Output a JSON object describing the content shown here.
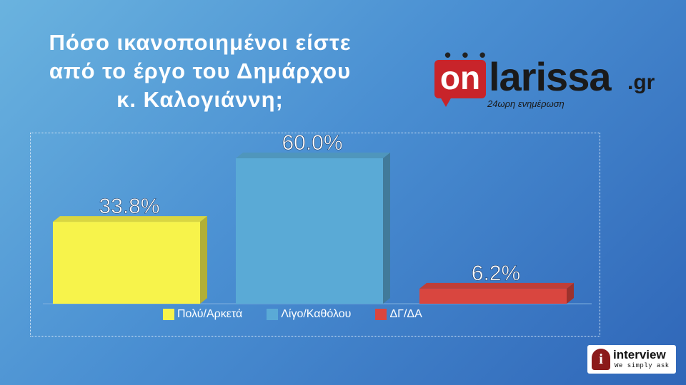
{
  "title_lines": [
    "Πόσο ικανοποιημένοι είστε",
    "από το έργο του Δημάρχου",
    "κ. Καλογιάννη;"
  ],
  "logo": {
    "dots": "• • •",
    "on": "on",
    "name": "larissa",
    "tld": ".gr",
    "tagline": "24ωρη ενημέρωση"
  },
  "interview_logo": {
    "badge": "i",
    "word": "interview",
    "slogan": "We simply ask"
  },
  "colors": {
    "yellow": "#f7f34b",
    "blue": "#5aaad6",
    "red": "#d9463f"
  },
  "chart_data": {
    "type": "bar",
    "categories": [
      "Πολύ/Αρκετά",
      "Λίγο/Καθόλου",
      "ΔΓ/ΔΑ"
    ],
    "values": [
      33.8,
      60.0,
      6.2
    ],
    "value_labels": [
      "33.8%",
      "60.0%",
      "6.2%"
    ],
    "colors": [
      "#f7f34b",
      "#5aaad6",
      "#d9463f"
    ],
    "ylim": [
      0,
      70
    ],
    "legend_position": "bottom",
    "grid": false
  }
}
